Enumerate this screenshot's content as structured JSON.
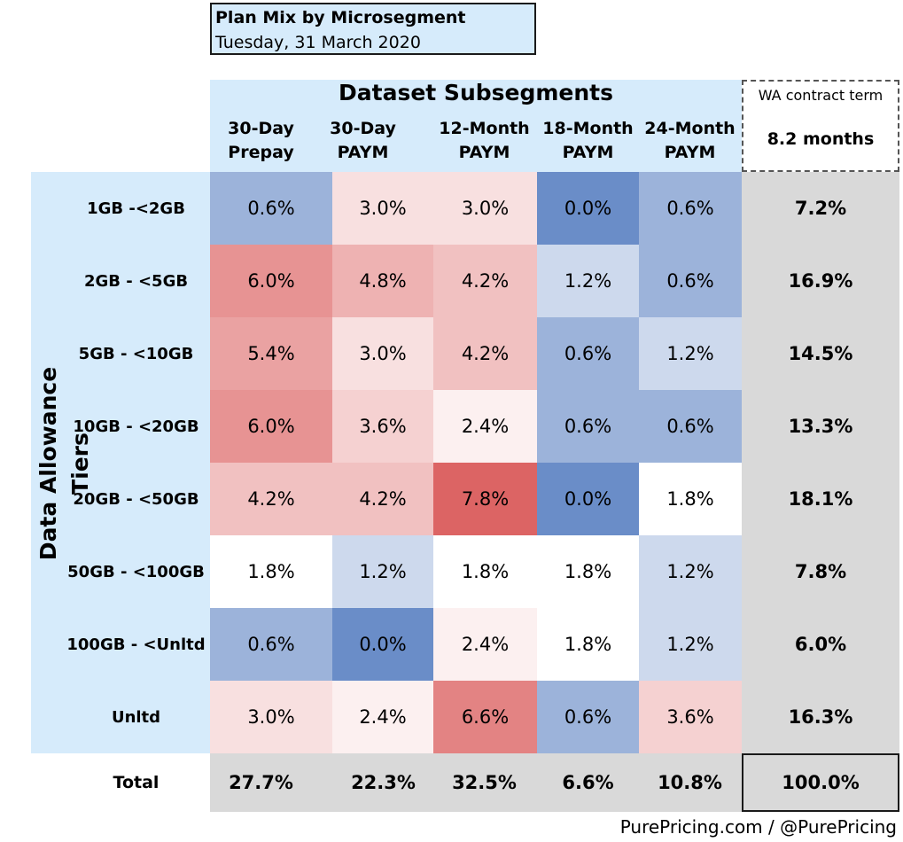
{
  "title": "Plan Mix by Microsegment",
  "date": "Tuesday, 31 March 2020",
  "chart_data": {
    "type": "heatmap",
    "column_group_label": "Dataset Subsegments",
    "row_group_label": "Data Allowance Tiers",
    "columns": [
      "30-Day Prepay",
      "30-Day PAYM",
      "12-Month PAYM",
      "18-Month PAYM",
      "24-Month PAYM"
    ],
    "rows": [
      "1GB -<2GB",
      "2GB - <5GB",
      "5GB - <10GB",
      "10GB - <20GB",
      "20GB - <50GB",
      "50GB - <100GB",
      "100GB - <Unltd",
      "Unltd"
    ],
    "values": [
      [
        0.6,
        3.0,
        3.0,
        0.0,
        0.6
      ],
      [
        6.0,
        4.8,
        4.2,
        1.2,
        0.6
      ],
      [
        5.4,
        3.0,
        4.2,
        0.6,
        1.2
      ],
      [
        6.0,
        3.6,
        2.4,
        0.6,
        0.6
      ],
      [
        4.2,
        4.2,
        7.8,
        0.0,
        1.8
      ],
      [
        1.8,
        1.2,
        1.8,
        1.8,
        1.2
      ],
      [
        0.6,
        0.0,
        2.4,
        1.8,
        1.2
      ],
      [
        3.0,
        2.4,
        6.6,
        0.6,
        3.6
      ]
    ],
    "value_labels": [
      [
        "0.6%",
        "3.0%",
        "3.0%",
        "0.0%",
        "0.6%"
      ],
      [
        "6.0%",
        "4.8%",
        "4.2%",
        "1.2%",
        "0.6%"
      ],
      [
        "5.4%",
        "3.0%",
        "4.2%",
        "0.6%",
        "1.2%"
      ],
      [
        "6.0%",
        "3.6%",
        "2.4%",
        "0.6%",
        "0.6%"
      ],
      [
        "4.2%",
        "4.2%",
        "7.8%",
        "0.0%",
        "1.8%"
      ],
      [
        "1.8%",
        "1.2%",
        "1.8%",
        "1.8%",
        "1.2%"
      ],
      [
        "0.6%",
        "0.0%",
        "2.4%",
        "1.8%",
        "1.2%"
      ],
      [
        "3.0%",
        "2.4%",
        "6.6%",
        "0.6%",
        "3.6%"
      ]
    ],
    "row_totals": [
      "7.2%",
      "16.9%",
      "14.5%",
      "13.3%",
      "18.1%",
      "7.8%",
      "6.0%",
      "16.3%"
    ],
    "column_totals": [
      "27.7%",
      "22.3%",
      "32.5%",
      "6.6%",
      "10.8%"
    ],
    "grand_total": "100.0%",
    "total_label": "Total",
    "color_scale": {
      "low": "#6a8dc8",
      "mid": "#ffffff",
      "high": "#dc6464",
      "mid_value": 1.8,
      "min": 0.0,
      "max": 7.8
    }
  },
  "wa_contract": {
    "label": "WA contract term",
    "value": "8.2 months"
  },
  "footer": "PurePricing.com / @PurePricing"
}
